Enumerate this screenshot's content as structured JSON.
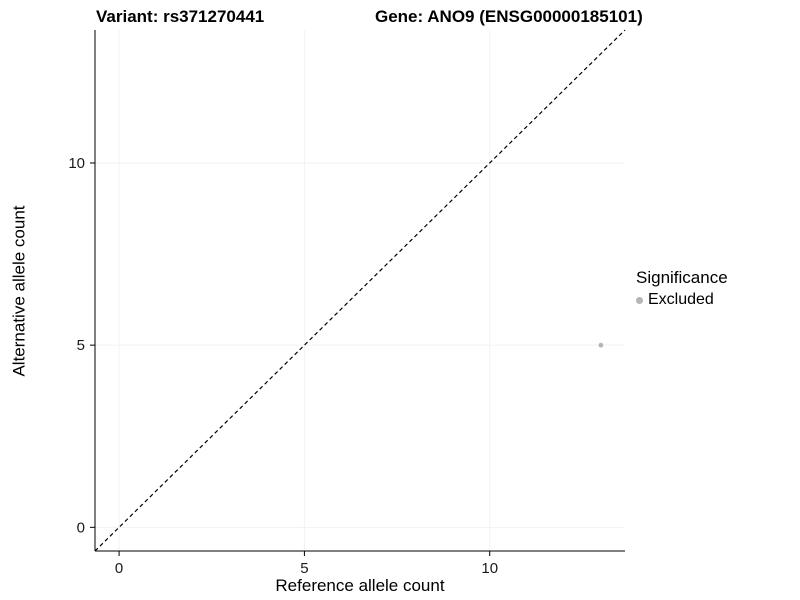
{
  "chart_data": {
    "type": "scatter",
    "title_left": "Variant: rs371270441",
    "title_right": "Gene: ANO9 (ENSG00000185101)",
    "xlabel": "Reference allele count",
    "ylabel": "Alternative allele count",
    "xlim": [
      -0.65,
      13.65
    ],
    "ylim": [
      -0.65,
      13.65
    ],
    "xticks": [
      0,
      5,
      10
    ],
    "yticks": [
      0,
      5,
      10
    ],
    "grid": false,
    "point_color": "#b5b5b5",
    "points": [
      {
        "x": 13,
        "y": 5,
        "series": "Excluded"
      }
    ],
    "identity_line": {
      "style": "dashed",
      "from": [
        -0.65,
        -0.65
      ],
      "to": [
        13.65,
        13.65
      ],
      "color": "#000000"
    },
    "legend": {
      "position": "right",
      "title": "Significance",
      "items": [
        {
          "label": "Excluded",
          "color": "#b5b5b5"
        }
      ]
    }
  }
}
